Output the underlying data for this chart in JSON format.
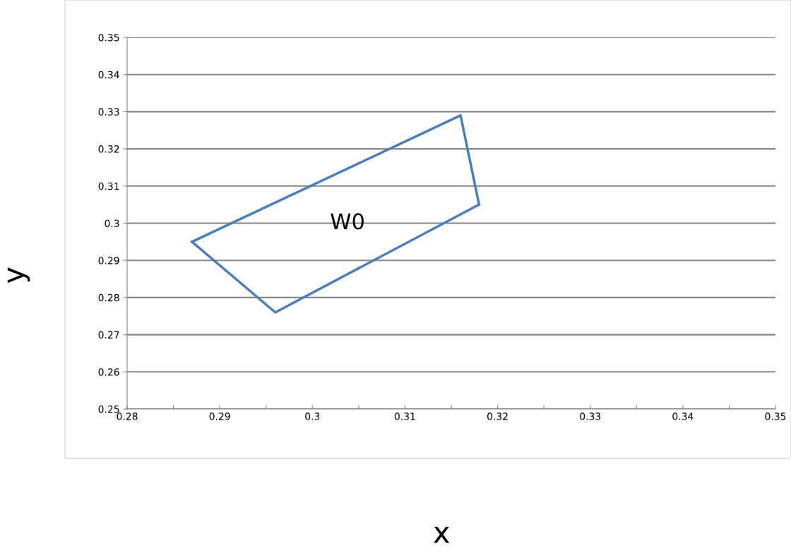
{
  "chart_data": {
    "type": "line",
    "xlabel": "x",
    "ylabel": "y",
    "series": [
      {
        "color": "#4a7ebb",
        "x": [
          0.287,
          0.316,
          0.318
        ],
        "values": [
          0.295,
          0.329,
          0.305
        ]
      },
      {
        "color": "#4a7ebb",
        "x": [
          0.287,
          0.296,
          0.318
        ],
        "values": [
          0.295,
          0.276,
          0.305
        ]
      }
    ],
    "annotations": [
      "W0"
    ],
    "xlim": [
      0.28,
      0.35
    ],
    "ylim": [
      0.25,
      0.35
    ],
    "xticks": [
      0.28,
      {
        "value": 0.285,
        "label": null
      },
      0.29,
      {
        "value": 0.295,
        "label": null
      },
      {
        "value": 0.3,
        "label": "0.3"
      },
      {
        "value": 0.305,
        "label": null
      },
      0.31,
      {
        "value": 0.315,
        "label": null
      },
      {
        "value": 0.32,
        "label": "0.32"
      },
      {
        "value": 0.325,
        "label": null
      },
      0.33,
      {
        "value": 0.335,
        "label": null
      },
      0.34,
      {
        "value": 0.345,
        "label": null
      },
      0.35
    ],
    "yticks": [
      0.25,
      0.26,
      0.27,
      0.28,
      0.29,
      {
        "value": 0.3,
        "label": "0.3"
      },
      0.31,
      0.32,
      0.33,
      0.34,
      0.35
    ],
    "grid": "y",
    "marker": "none",
    "line_style": "solid",
    "legend": false
  }
}
